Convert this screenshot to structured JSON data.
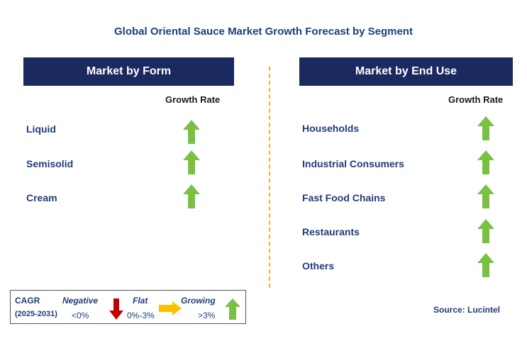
{
  "title": "Global Oriental Sauce Market Growth Forecast by Segment",
  "colors": {
    "header_bg": "#1a2a5e",
    "text_blue": "#1f3d7a",
    "arrow_green": "#7ac143",
    "arrow_red": "#c00000",
    "arrow_yellow": "#ffc000",
    "divider": "#f2b33d"
  },
  "left_panel": {
    "header": "Market by Form",
    "growth_label": "Growth Rate",
    "rows": [
      {
        "label": "Liquid",
        "trend": "growing"
      },
      {
        "label": "Semisolid",
        "trend": "growing"
      },
      {
        "label": "Cream",
        "trend": "growing"
      }
    ]
  },
  "right_panel": {
    "header": "Market by End Use",
    "growth_label": "Growth Rate",
    "rows": [
      {
        "label": "Households",
        "trend": "growing"
      },
      {
        "label": "Industrial Consumers",
        "trend": "growing"
      },
      {
        "label": "Fast Food Chains",
        "trend": "growing"
      },
      {
        "label": "Restaurants",
        "trend": "growing"
      },
      {
        "label": "Others",
        "trend": "growing"
      }
    ]
  },
  "legend": {
    "cagr": "CAGR",
    "period": "(2025-2031)",
    "negative": {
      "label": "Negative",
      "range": "<0%",
      "icon": "red-down-arrow-icon"
    },
    "flat": {
      "label": "Flat",
      "range": "0%-3%",
      "icon": "yellow-right-arrow-icon"
    },
    "growing": {
      "label": "Growing",
      "range": ">3%",
      "icon": "green-up-arrow-icon"
    }
  },
  "source": "Source: Lucintel"
}
